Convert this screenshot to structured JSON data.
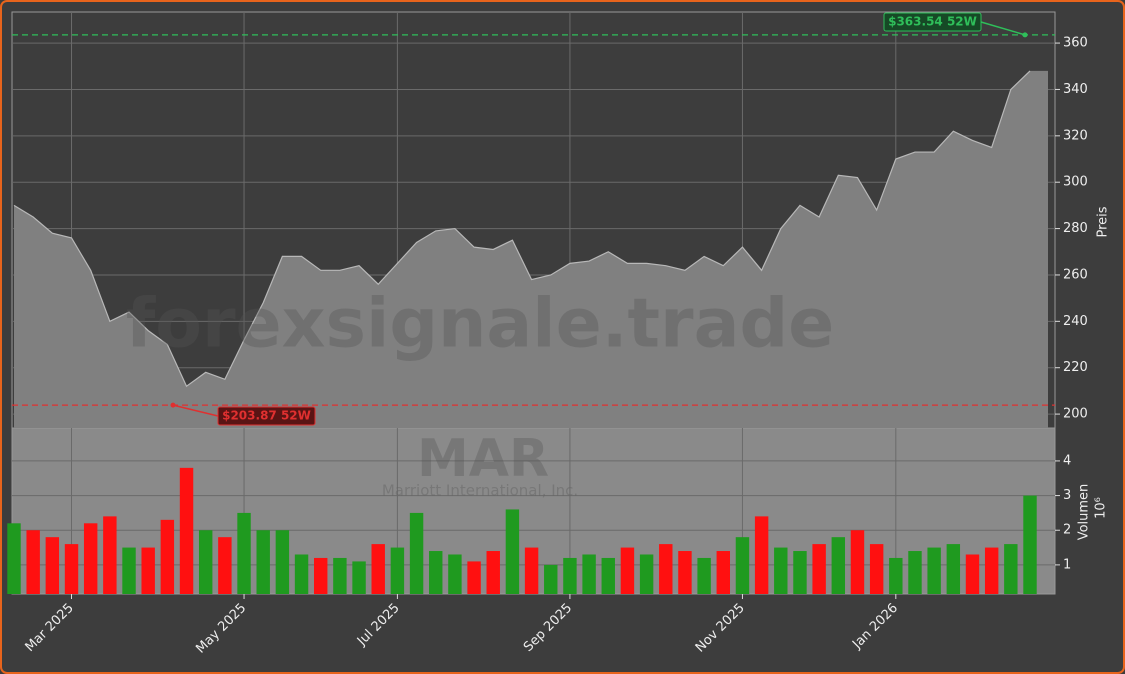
{
  "chart_data": [
    {
      "type": "area",
      "y_label": "Preis",
      "watermark": "forexsignale.trade",
      "categories": [
        null,
        null,
        null,
        "Mar 2025",
        null,
        null,
        null,
        null,
        null,
        null,
        null,
        null,
        "May 2025",
        null,
        null,
        null,
        null,
        null,
        null,
        null,
        "Jul 2025",
        null,
        null,
        null,
        null,
        null,
        null,
        null,
        null,
        "Sep 2025",
        null,
        null,
        null,
        null,
        null,
        null,
        null,
        null,
        "Nov 2025",
        null,
        null,
        null,
        null,
        null,
        null,
        null,
        "Jan 2026",
        null,
        null,
        null,
        null,
        null,
        null,
        null
      ],
      "values": [
        290,
        285,
        278,
        276,
        262,
        240,
        244,
        236,
        230,
        212,
        218,
        215,
        232,
        248,
        268,
        268,
        262,
        262,
        264,
        256,
        265,
        274,
        279,
        280,
        272,
        271,
        275,
        258,
        260,
        265,
        266,
        270,
        265,
        265,
        264,
        262,
        268,
        264,
        272,
        262,
        280,
        290,
        285,
        303,
        302,
        288,
        310,
        313,
        313,
        322,
        318,
        315,
        340,
        348
      ],
      "color": "#808080",
      "ylim": [
        194,
        373.4
      ],
      "yticks": [
        200,
        220,
        240,
        260,
        280,
        300,
        320,
        340,
        360
      ],
      "grid": true,
      "high": {
        "value": 363.54,
        "label": "$363.54 52W",
        "color": "#2fbf5a"
      },
      "low": {
        "value": 203.87,
        "label": "$203.87 52W",
        "color": "#e03030"
      }
    },
    {
      "type": "bar",
      "y_label": "Volumen",
      "unit_label": "10⁶",
      "watermark": "MAR",
      "subtitle": "Marriott International, Inc.",
      "values": [
        2.2,
        2.0,
        1.8,
        1.6,
        2.2,
        2.4,
        1.5,
        1.5,
        2.3,
        3.8,
        2.0,
        1.8,
        2.5,
        2.0,
        2.0,
        1.3,
        1.2,
        1.2,
        1.1,
        1.6,
        1.5,
        2.5,
        1.4,
        1.3,
        1.1,
        1.4,
        2.6,
        1.5,
        1.0,
        1.2,
        1.3,
        1.2,
        1.5,
        1.3,
        1.6,
        1.4,
        1.2,
        1.4,
        1.8,
        2.4,
        1.5,
        1.4,
        1.6,
        1.8,
        2.0,
        1.6,
        1.2,
        1.4,
        1.5,
        1.6,
        1.3,
        1.5,
        1.6,
        3.0
      ],
      "up_color": "#1f9a1f",
      "down_color": "#ff1010",
      "ylim": [
        0.16,
        4.95
      ],
      "yticks": [
        1,
        2,
        3,
        4
      ],
      "grid": true
    }
  ]
}
